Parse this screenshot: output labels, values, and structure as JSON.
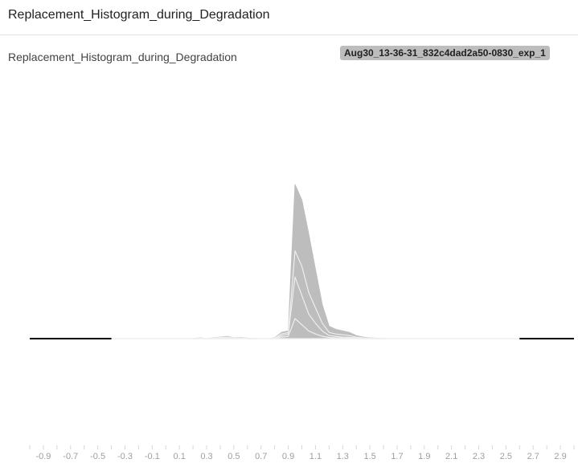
{
  "header": {
    "title": "Replacement_Histogram_during_Degradation"
  },
  "card": {
    "title": "Replacement_Histogram_during_Degradation",
    "run_badge": "Aug30_13-36-31_832c4dad2a50-0830_exp_1"
  },
  "colors": {
    "fill": "#bdbdbd",
    "slice_line": "#eeeeee",
    "baseline": "#e0e0e0",
    "edge_line": "#000000",
    "tick_text": "#9e9e9e"
  },
  "chart_data": {
    "type": "area",
    "mode": "offset histogram (overlaid steps)",
    "x_ticks": [
      -0.9,
      -0.7,
      -0.5,
      -0.3,
      -0.1,
      0.1,
      0.3,
      0.5,
      0.7,
      0.9,
      1.1,
      1.3,
      1.5,
      1.7,
      1.9,
      2.1,
      2.3,
      2.5,
      2.7,
      2.9
    ],
    "xlim": [
      -1.0,
      3.0
    ],
    "edge_segments": [
      [
        -1.0,
        -0.4
      ],
      [
        2.6,
        3.0
      ]
    ],
    "x": [
      -0.4,
      0.0,
      0.1,
      0.2,
      0.25,
      0.3,
      0.35,
      0.4,
      0.45,
      0.5,
      0.55,
      0.6,
      0.7,
      0.75,
      0.8,
      0.85,
      0.9,
      0.95,
      1.0,
      1.05,
      1.1,
      1.15,
      1.2,
      1.25,
      1.3,
      1.35,
      1.4,
      1.45,
      1.5,
      1.6,
      2.6
    ],
    "series": [
      {
        "values": [
          0,
          0,
          0,
          0,
          0.005,
          0,
          0.005,
          0.01,
          0.015,
          0.005,
          0.008,
          0.003,
          0,
          0,
          0.005,
          0.04,
          0.05,
          1.0,
          0.9,
          0.68,
          0.45,
          0.22,
          0.08,
          0.06,
          0.05,
          0.04,
          0.02,
          0.01,
          0.005,
          0,
          0
        ]
      },
      {
        "values": [
          0,
          0,
          0,
          0,
          0.003,
          0,
          0.003,
          0.008,
          0.01,
          0.004,
          0.005,
          0.002,
          0,
          0,
          0.003,
          0.03,
          0.04,
          0.57,
          0.47,
          0.3,
          0.2,
          0.1,
          0.04,
          0.03,
          0.025,
          0.02,
          0.01,
          0.005,
          0.003,
          0,
          0
        ]
      },
      {
        "values": [
          0,
          0,
          0,
          0,
          0.002,
          0,
          0.002,
          0.005,
          0.006,
          0.002,
          0.003,
          0.001,
          0,
          0,
          0.002,
          0.02,
          0.03,
          0.4,
          0.28,
          0.16,
          0.1,
          0.05,
          0.02,
          0.015,
          0.01,
          0.008,
          0.005,
          0.003,
          0.001,
          0,
          0
        ]
      },
      {
        "values": [
          0,
          0,
          0,
          0,
          0.001,
          0,
          0.001,
          0.002,
          0.003,
          0.001,
          0.001,
          0,
          0,
          0,
          0.001,
          0.01,
          0.015,
          0.13,
          0.09,
          0.05,
          0.03,
          0.015,
          0.008,
          0.005,
          0.004,
          0.003,
          0.002,
          0.001,
          0,
          0,
          0
        ]
      }
    ]
  }
}
